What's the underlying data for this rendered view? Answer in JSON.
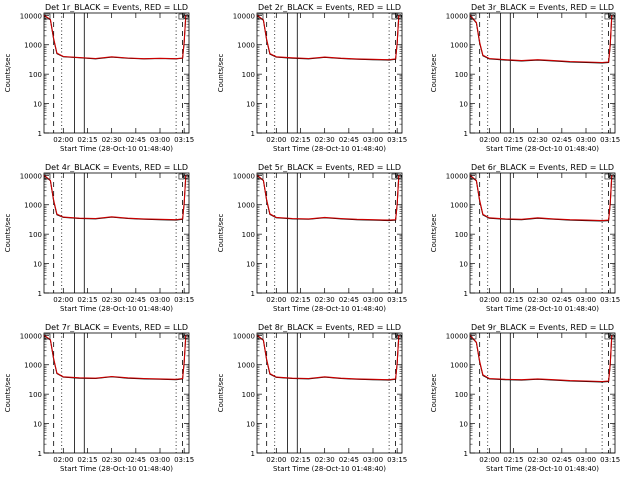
{
  "chart_data": [
    {
      "type": "line",
      "title": "Det 1r_BLACK = Events, RED = LLD",
      "ylabel": "Counts/sec",
      "xlabel": "Start Time (28-Oct-10 01:48:40)",
      "x_ticks": [
        "02:00",
        "02:15",
        "02:30",
        "02:45",
        "03:00",
        "03:15"
      ],
      "y_ticks": [
        "1",
        "10",
        "100",
        "1000",
        "10000"
      ],
      "ylim": [
        1,
        12000
      ],
      "yscale": "log",
      "grid": false,
      "series": [
        {
          "color": "#000000",
          "x": [
            "01:48",
            "01:52",
            "01:54",
            "01:56",
            "02:00",
            "02:10",
            "02:20",
            "02:30",
            "02:40",
            "02:50",
            "03:00",
            "03:10",
            "03:14",
            "03:15",
            "03:16"
          ],
          "values": [
            10000,
            7000,
            1500,
            500,
            390,
            360,
            330,
            380,
            350,
            330,
            340,
            330,
            350,
            1200,
            10000
          ]
        },
        {
          "color": "#cc0000",
          "x": [
            "01:48",
            "01:52",
            "01:54",
            "01:56",
            "02:00",
            "02:10",
            "02:20",
            "02:30",
            "02:40",
            "02:50",
            "03:00",
            "03:10",
            "03:14",
            "03:15",
            "03:16"
          ],
          "values": [
            10000,
            7200,
            1600,
            520,
            400,
            365,
            340,
            390,
            355,
            335,
            345,
            335,
            355,
            1300,
            10000
          ]
        }
      ],
      "vlines": {
        "solid": [
          "02:07",
          "02:13"
        ],
        "dashed": [
          "01:54",
          "03:14"
        ],
        "dotted": [
          "01:59",
          "03:10"
        ]
      }
    },
    {
      "type": "line",
      "title": "Det 2r_BLACK = Events, RED = LLD",
      "ylabel": "Counts/sec",
      "xlabel": "Start Time (28-Oct-10 01:48:40)",
      "x_ticks": [
        "02:00",
        "02:15",
        "02:30",
        "02:45",
        "03:00",
        "03:15"
      ],
      "y_ticks": [
        "1",
        "10",
        "100",
        "1000",
        "10000"
      ],
      "ylim": [
        1,
        12000
      ],
      "yscale": "log",
      "grid": false,
      "series": [
        {
          "color": "#000000",
          "x": [
            "01:48",
            "01:52",
            "01:54",
            "01:56",
            "02:00",
            "02:10",
            "02:20",
            "02:30",
            "02:40",
            "02:50",
            "03:00",
            "03:10",
            "03:14",
            "03:15",
            "03:16"
          ],
          "values": [
            10000,
            6800,
            1400,
            480,
            380,
            350,
            330,
            370,
            340,
            320,
            310,
            300,
            320,
            1100,
            10000
          ]
        },
        {
          "color": "#cc0000",
          "x": [
            "01:48",
            "01:52",
            "01:54",
            "01:56",
            "02:00",
            "02:10",
            "02:20",
            "02:30",
            "02:40",
            "02:50",
            "03:00",
            "03:10",
            "03:14",
            "03:15",
            "03:16"
          ],
          "values": [
            10000,
            7000,
            1500,
            500,
            390,
            360,
            340,
            380,
            350,
            330,
            320,
            310,
            330,
            1200,
            10000
          ]
        }
      ],
      "vlines": {
        "solid": [
          "02:07",
          "02:13"
        ],
        "dashed": [
          "01:54",
          "03:14"
        ],
        "dotted": [
          "01:59",
          "03:10"
        ]
      }
    },
    {
      "type": "line",
      "title": "Det 3r_BLACK = Events, RED = LLD",
      "ylabel": "Counts/sec",
      "xlabel": "Start Time (28-Oct-10 01:48:40)",
      "x_ticks": [
        "02:00",
        "02:15",
        "02:30",
        "02:45",
        "03:00",
        "03:15"
      ],
      "y_ticks": [
        "1",
        "10",
        "100",
        "1000",
        "10000"
      ],
      "ylim": [
        1,
        12000
      ],
      "yscale": "log",
      "grid": false,
      "series": [
        {
          "color": "#000000",
          "x": [
            "01:48",
            "01:52",
            "01:54",
            "01:56",
            "02:00",
            "02:10",
            "02:20",
            "02:30",
            "02:40",
            "02:50",
            "03:00",
            "03:10",
            "03:14",
            "03:15",
            "03:16"
          ],
          "values": [
            10000,
            5500,
            1100,
            420,
            330,
            300,
            280,
            300,
            280,
            260,
            250,
            240,
            250,
            900,
            10000
          ]
        },
        {
          "color": "#cc0000",
          "x": [
            "01:48",
            "01:52",
            "01:54",
            "01:56",
            "02:00",
            "02:10",
            "02:20",
            "02:30",
            "02:40",
            "02:50",
            "03:00",
            "03:10",
            "03:14",
            "03:15",
            "03:16"
          ],
          "values": [
            10000,
            5700,
            1200,
            440,
            340,
            310,
            290,
            310,
            290,
            270,
            260,
            250,
            260,
            1000,
            10000
          ]
        }
      ],
      "vlines": {
        "solid": [
          "02:07",
          "02:13"
        ],
        "dashed": [
          "01:54",
          "03:14"
        ],
        "dotted": [
          "01:59",
          "03:10"
        ]
      }
    },
    {
      "type": "line",
      "title": "Det 4r_BLACK = Events, RED = LLD",
      "ylabel": "Counts/sec",
      "xlabel": "Start Time (28-Oct-10 01:48:40)",
      "x_ticks": [
        "02:00",
        "02:15",
        "02:30",
        "02:45",
        "03:00",
        "03:15"
      ],
      "y_ticks": [
        "1",
        "10",
        "100",
        "1000",
        "10000"
      ],
      "ylim": [
        1,
        12000
      ],
      "yscale": "log",
      "grid": false,
      "series": [
        {
          "color": "#000000",
          "x": [
            "01:48",
            "01:52",
            "01:54",
            "01:56",
            "02:00",
            "02:10",
            "02:20",
            "02:30",
            "02:40",
            "02:50",
            "03:00",
            "03:10",
            "03:14",
            "03:15",
            "03:16"
          ],
          "values": [
            10000,
            6500,
            1300,
            460,
            370,
            340,
            330,
            380,
            340,
            320,
            310,
            300,
            320,
            1100,
            10000
          ]
        },
        {
          "color": "#cc0000",
          "x": [
            "01:48",
            "01:52",
            "01:54",
            "01:56",
            "02:00",
            "02:10",
            "02:20",
            "02:30",
            "02:40",
            "02:50",
            "03:00",
            "03:10",
            "03:14",
            "03:15",
            "03:16"
          ],
          "values": [
            10000,
            6700,
            1400,
            480,
            380,
            350,
            340,
            390,
            350,
            330,
            320,
            310,
            330,
            1200,
            10000
          ]
        }
      ],
      "vlines": {
        "solid": [
          "02:07",
          "02:13"
        ],
        "dashed": [
          "01:54",
          "03:14"
        ],
        "dotted": [
          "01:59",
          "03:10"
        ]
      }
    },
    {
      "type": "line",
      "title": "Det 5r_BLACK = Events, RED = LLD",
      "ylabel": "Counts/sec",
      "xlabel": "Start Time (28-Oct-10 01:48:40)",
      "x_ticks": [
        "02:00",
        "02:15",
        "02:30",
        "02:45",
        "03:00",
        "03:15"
      ],
      "y_ticks": [
        "1",
        "10",
        "100",
        "1000",
        "10000"
      ],
      "ylim": [
        1,
        12000
      ],
      "yscale": "log",
      "grid": false,
      "series": [
        {
          "color": "#000000",
          "x": [
            "01:48",
            "01:52",
            "01:54",
            "01:56",
            "02:00",
            "02:10",
            "02:20",
            "02:30",
            "02:40",
            "02:50",
            "03:00",
            "03:10",
            "03:14",
            "03:15",
            "03:16"
          ],
          "values": [
            10000,
            6600,
            1350,
            470,
            360,
            330,
            320,
            360,
            330,
            310,
            300,
            290,
            300,
            1000,
            10000
          ]
        },
        {
          "color": "#cc0000",
          "x": [
            "01:48",
            "01:52",
            "01:54",
            "01:56",
            "02:00",
            "02:10",
            "02:20",
            "02:30",
            "02:40",
            "02:50",
            "03:00",
            "03:10",
            "03:14",
            "03:15",
            "03:16"
          ],
          "values": [
            10000,
            6800,
            1450,
            490,
            370,
            340,
            330,
            370,
            340,
            320,
            310,
            300,
            310,
            1100,
            10000
          ]
        }
      ],
      "vlines": {
        "solid": [
          "02:07",
          "02:13"
        ],
        "dashed": [
          "01:54",
          "03:14"
        ],
        "dotted": [
          "01:59",
          "03:10"
        ]
      }
    },
    {
      "type": "line",
      "title": "Det 6r_BLACK = Events, RED = LLD",
      "ylabel": "Counts/sec",
      "xlabel": "Start Time (28-Oct-10 01:48:40)",
      "x_ticks": [
        "02:00",
        "02:15",
        "02:30",
        "02:45",
        "03:00",
        "03:15"
      ],
      "y_ticks": [
        "1",
        "10",
        "100",
        "1000",
        "10000"
      ],
      "ylim": [
        1,
        12000
      ],
      "yscale": "log",
      "grid": false,
      "series": [
        {
          "color": "#000000",
          "x": [
            "01:48",
            "01:52",
            "01:54",
            "01:56",
            "02:00",
            "02:10",
            "02:20",
            "02:30",
            "02:40",
            "02:50",
            "03:00",
            "03:10",
            "03:14",
            "03:15",
            "03:16"
          ],
          "values": [
            10000,
            6400,
            1300,
            450,
            350,
            320,
            310,
            350,
            320,
            300,
            290,
            280,
            290,
            1000,
            10000
          ]
        },
        {
          "color": "#cc0000",
          "x": [
            "01:48",
            "01:52",
            "01:54",
            "01:56",
            "02:00",
            "02:10",
            "02:20",
            "02:30",
            "02:40",
            "02:50",
            "03:00",
            "03:10",
            "03:14",
            "03:15",
            "03:16"
          ],
          "values": [
            10000,
            6600,
            1400,
            470,
            360,
            330,
            320,
            360,
            330,
            310,
            300,
            290,
            300,
            1100,
            10000
          ]
        }
      ],
      "vlines": {
        "solid": [
          "02:07",
          "02:13"
        ],
        "dashed": [
          "01:54",
          "03:14"
        ],
        "dotted": [
          "01:59",
          "03:10"
        ]
      }
    },
    {
      "type": "line",
      "title": "Det 7r_BLACK = Events, RED = LLD",
      "ylabel": "Counts/sec",
      "xlabel": "Start Time (28-Oct-10 01:48:40)",
      "x_ticks": [
        "02:00",
        "02:15",
        "02:30",
        "02:45",
        "03:00",
        "03:15"
      ],
      "y_ticks": [
        "1",
        "10",
        "100",
        "1000",
        "10000"
      ],
      "ylim": [
        1,
        12000
      ],
      "yscale": "log",
      "grid": false,
      "series": [
        {
          "color": "#000000",
          "x": [
            "01:48",
            "01:52",
            "01:54",
            "01:56",
            "02:00",
            "02:10",
            "02:20",
            "02:30",
            "02:40",
            "02:50",
            "03:00",
            "03:10",
            "03:14",
            "03:15",
            "03:16"
          ],
          "values": [
            10000,
            6900,
            1500,
            500,
            380,
            350,
            340,
            390,
            350,
            330,
            320,
            310,
            330,
            1200,
            10000
          ]
        },
        {
          "color": "#cc0000",
          "x": [
            "01:48",
            "01:52",
            "01:54",
            "01:56",
            "02:00",
            "02:10",
            "02:20",
            "02:30",
            "02:40",
            "02:50",
            "03:00",
            "03:10",
            "03:14",
            "03:15",
            "03:16"
          ],
          "values": [
            10000,
            7100,
            1600,
            520,
            390,
            360,
            350,
            400,
            360,
            340,
            330,
            320,
            340,
            1300,
            10000
          ]
        }
      ],
      "vlines": {
        "solid": [
          "02:07",
          "02:13"
        ],
        "dashed": [
          "01:54",
          "03:14"
        ],
        "dotted": [
          "01:59",
          "03:10"
        ]
      }
    },
    {
      "type": "line",
      "title": "Det 8r_BLACK = Events, RED = LLD",
      "ylabel": "Counts/sec",
      "xlabel": "Start Time (28-Oct-10 01:48:40)",
      "x_ticks": [
        "02:00",
        "02:15",
        "02:30",
        "02:45",
        "03:00",
        "03:15"
      ],
      "y_ticks": [
        "1",
        "10",
        "100",
        "1000",
        "10000"
      ],
      "ylim": [
        1,
        12000
      ],
      "yscale": "log",
      "grid": false,
      "series": [
        {
          "color": "#000000",
          "x": [
            "01:48",
            "01:52",
            "01:54",
            "01:56",
            "02:00",
            "02:10",
            "02:20",
            "02:30",
            "02:40",
            "02:50",
            "03:00",
            "03:10",
            "03:14",
            "03:15",
            "03:16"
          ],
          "values": [
            10000,
            6700,
            1400,
            480,
            370,
            340,
            330,
            380,
            340,
            320,
            310,
            300,
            320,
            1100,
            10000
          ]
        },
        {
          "color": "#cc0000",
          "x": [
            "01:48",
            "01:52",
            "01:54",
            "01:56",
            "02:00",
            "02:10",
            "02:20",
            "02:30",
            "02:40",
            "02:50",
            "03:00",
            "03:10",
            "03:14",
            "03:15",
            "03:16"
          ],
          "values": [
            10000,
            6900,
            1500,
            500,
            380,
            350,
            340,
            390,
            350,
            330,
            320,
            310,
            330,
            1200,
            10000
          ]
        }
      ],
      "vlines": {
        "solid": [
          "02:07",
          "02:13"
        ],
        "dashed": [
          "01:54",
          "03:14"
        ],
        "dotted": [
          "01:59",
          "03:10"
        ]
      }
    },
    {
      "type": "line",
      "title": "Det 9r_BLACK = Events, RED = LLD",
      "ylabel": "Counts/sec",
      "xlabel": "Start Time (28-Oct-10 01:48:40)",
      "x_ticks": [
        "02:00",
        "02:15",
        "02:30",
        "02:45",
        "03:00",
        "03:15"
      ],
      "y_ticks": [
        "1",
        "10",
        "100",
        "1000",
        "10000"
      ],
      "ylim": [
        1,
        12000
      ],
      "yscale": "log",
      "grid": false,
      "series": [
        {
          "color": "#000000",
          "x": [
            "01:48",
            "01:52",
            "01:54",
            "01:56",
            "02:00",
            "02:10",
            "02:20",
            "02:30",
            "02:40",
            "02:50",
            "03:00",
            "03:10",
            "03:14",
            "03:15",
            "03:16"
          ],
          "values": [
            10000,
            5600,
            1200,
            430,
            330,
            310,
            300,
            320,
            300,
            280,
            270,
            260,
            270,
            950,
            10000
          ]
        },
        {
          "color": "#cc0000",
          "x": [
            "01:48",
            "01:52",
            "01:54",
            "01:56",
            "02:00",
            "02:10",
            "02:20",
            "02:30",
            "02:40",
            "02:50",
            "03:00",
            "03:10",
            "03:14",
            "03:15",
            "03:16"
          ],
          "values": [
            10000,
            5800,
            1300,
            450,
            340,
            320,
            310,
            330,
            310,
            290,
            280,
            270,
            280,
            1050,
            10000
          ]
        }
      ],
      "vlines": {
        "solid": [
          "02:07",
          "02:13"
        ],
        "dashed": [
          "01:54",
          "03:14"
        ],
        "dotted": [
          "01:59",
          "03:10"
        ]
      }
    }
  ]
}
